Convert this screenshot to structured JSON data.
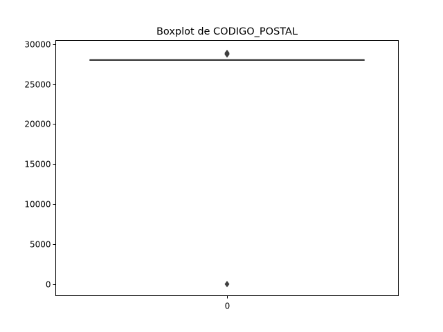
{
  "chart_data": {
    "type": "boxplot",
    "title": "Boxplot de CODIGO_POSTAL",
    "xlabel": "",
    "ylabel": "",
    "categories": [
      "0"
    ],
    "ylim": [
      -1450,
      30450
    ],
    "yticks": [
      0,
      5000,
      10000,
      15000,
      20000,
      25000,
      30000
    ],
    "ytick_labels": [
      "0",
      "5000",
      "10000",
      "15000",
      "20000",
      "25000",
      "30000"
    ],
    "grid": false,
    "boxes": [
      {
        "category": "0",
        "whisker_low": 28000,
        "q1": 28005,
        "median": 28020,
        "q3": 28040,
        "whisker_high": 28050,
        "outliers": [
          0,
          28700,
          28760,
          28830,
          28890
        ]
      }
    ],
    "colors": {
      "box_fill": "#3274a1",
      "line": "#3f3f3f",
      "outlier": "#3f3f3f",
      "axes": "#000000"
    }
  }
}
